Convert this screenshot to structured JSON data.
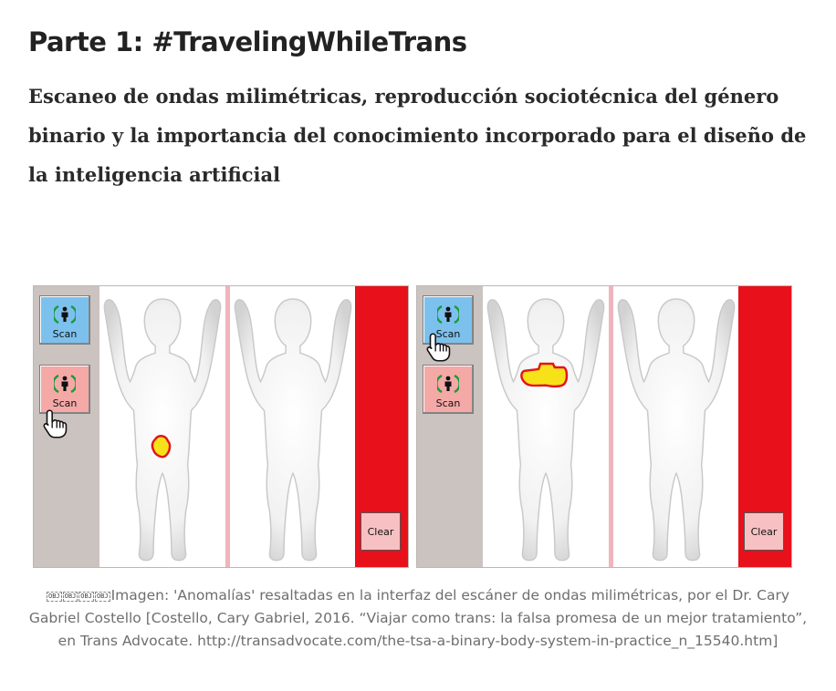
{
  "heading": {
    "title": "Parte 1: #TravelingWhileTrans",
    "subtitle": "Escaneo de ondas milimétricas, reproducción sociotécnica del género binario y la importancia del conocimiento incorporado para el diseño de la inteligencia artificial"
  },
  "figure": {
    "panels": [
      {
        "scan_buttons": [
          {
            "label": "Scan",
            "color": "#7cc1ee"
          },
          {
            "label": "Scan",
            "color": "#f4a9a6"
          }
        ],
        "clear_label": "Clear",
        "anomaly": "groin"
      },
      {
        "scan_buttons": [
          {
            "label": "Scan",
            "color": "#7cc1ee"
          },
          {
            "label": "Scan",
            "color": "#f4a9a6"
          }
        ],
        "clear_label": "Clear",
        "anomaly": "chest"
      }
    ],
    "icons": [
      "person-icon",
      "hand-cursor-icon"
    ],
    "colors": {
      "blue_button": "#7cc1ee",
      "pink_button": "#f4a9a6",
      "side_bar": "#cbc3c0",
      "red_bar": "#e8101a",
      "anomaly_fill": "#f7e21a",
      "anomaly_outline": "#e4141c"
    }
  },
  "caption": {
    "placeholders": [
      "OBJ",
      "OBJ",
      "OBJ",
      "OBJ"
    ],
    "text": "Imagen: 'Anomalías' resaltadas en la interfaz del escáner de ondas milimétricas, por el Dr. Cary Gabriel Costello [Costello, Cary Gabriel, 2016. “Viajar como trans: la falsa promesa de un mejor tratamiento”, en Trans Advocate. http://transadvocate.com/the-tsa-a-binary-body-system-in-practice_n_15540.htm]"
  }
}
